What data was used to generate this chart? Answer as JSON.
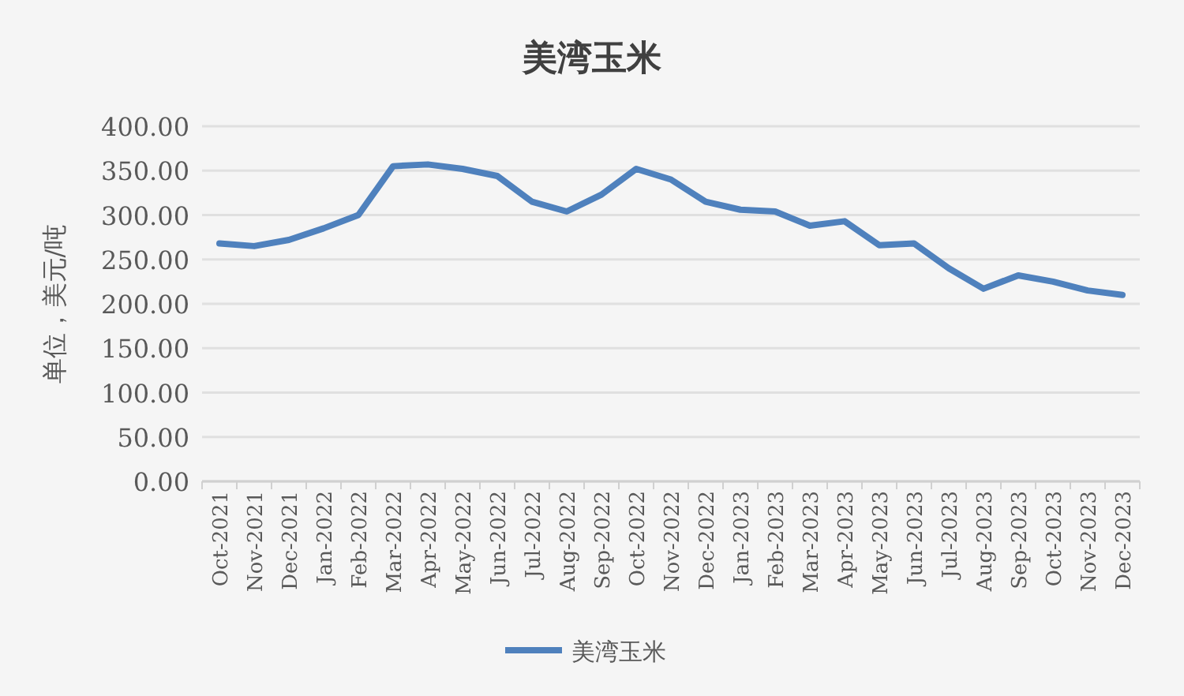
{
  "chart_data": {
    "type": "line",
    "title": "美湾玉米",
    "ylabel": "单位，美元/吨",
    "categories": [
      "Oct-2021",
      "Nov-2021",
      "Dec-2021",
      "Jan-2022",
      "Feb-2022",
      "Mar-2022",
      "Apr-2022",
      "May-2022",
      "Jun-2022",
      "Jul-2022",
      "Aug-2022",
      "Sep-2022",
      "Oct-2022",
      "Nov-2022",
      "Dec-2022",
      "Jan-2023",
      "Feb-2023",
      "Mar-2023",
      "Apr-2023",
      "May-2023",
      "Jun-2023",
      "Jul-2023",
      "Aug-2023",
      "Sep-2023",
      "Oct-2023",
      "Nov-2023",
      "Dec-2023"
    ],
    "series": [
      {
        "name": "美湾玉米",
        "color": "#4f81bd",
        "values": [
          268,
          265,
          272,
          285,
          300,
          355,
          357,
          352,
          344,
          315,
          304,
          323,
          352,
          340,
          315,
          306,
          304,
          288,
          293,
          266,
          268,
          240,
          217,
          232,
          225,
          215,
          210
        ]
      }
    ],
    "ylim": [
      0,
      400
    ],
    "yticks": [
      {
        "value": 0,
        "label": "0.00"
      },
      {
        "value": 50,
        "label": "50.00"
      },
      {
        "value": 100,
        "label": "100.00"
      },
      {
        "value": 150,
        "label": "150.00"
      },
      {
        "value": 200,
        "label": "200.00"
      },
      {
        "value": 250,
        "label": "250.00"
      },
      {
        "value": 300,
        "label": "300.00"
      },
      {
        "value": 350,
        "label": "350.00"
      },
      {
        "value": 400,
        "label": "400.00"
      }
    ],
    "grid": "y",
    "legend": "bottom",
    "marker": "none",
    "line_style": "solid"
  }
}
